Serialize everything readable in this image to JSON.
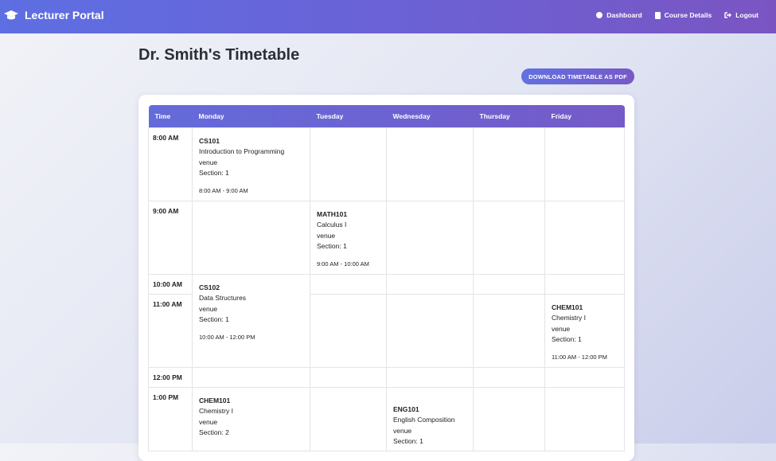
{
  "navbar": {
    "brand": "Lecturer Portal",
    "links": [
      "Dashboard",
      "Course Details",
      "Logout"
    ]
  },
  "page": {
    "title": "Dr. Smith's Timetable",
    "download_button": "DOWNLOAD TIMETABLE AS PDF"
  },
  "timetable": {
    "headers": [
      "Time",
      "Monday",
      "Tuesday",
      "Wednesday",
      "Thursday",
      "Friday"
    ],
    "times": [
      "8:00 AM",
      "9:00 AM",
      "10:00 AM",
      "11:00 AM",
      "12:00 PM",
      "1:00 PM"
    ],
    "classes": [
      {
        "code": "CS101",
        "name": "Introduction to Programming",
        "venue": "venue",
        "section": "Section: 1",
        "time": "8:00 AM - 9:00 AM"
      },
      {
        "code": "MATH101",
        "name": "Calculus I",
        "venue": "venue",
        "section": "Section: 1",
        "time": "9:00 AM - 10:00 AM"
      },
      {
        "code": "CS102",
        "name": "Data Structures",
        "venue": "venue",
        "section": "Section: 1",
        "time": "10:00 AM - 12:00 PM"
      },
      {
        "code": "CHEM101",
        "name": "Chemistry I",
        "venue": "venue",
        "section": "Section: 1",
        "time": "11:00 AM - 12:00 PM"
      },
      {
        "code": "CHEM101",
        "name": "Chemistry I",
        "venue": "venue",
        "section": "Section: 2"
      },
      {
        "code": "ENG101",
        "name": "English Composition",
        "venue": "venue",
        "section": "Section: 1"
      }
    ]
  }
}
